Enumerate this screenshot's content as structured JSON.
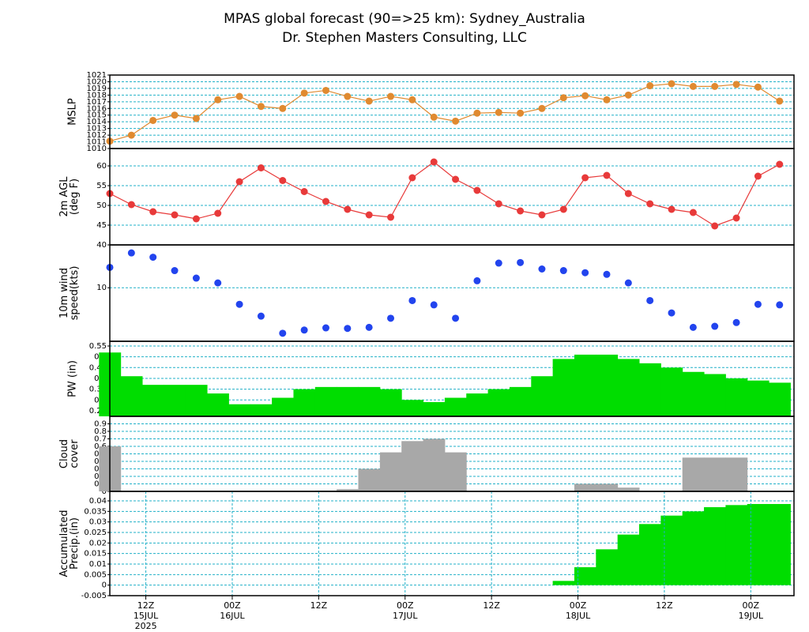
{
  "header": {
    "title": "MPAS global forecast (90=>25 km): Sydney_Australia",
    "subtitle": "Dr. Stephen Masters Consulting, LLC"
  },
  "chart_data": [
    {
      "type": "line",
      "ylabel": [
        "MSLP"
      ],
      "color": "#e08a30",
      "grid": true,
      "x": [
        7,
        10,
        13,
        16,
        19,
        22,
        25,
        28,
        31,
        34,
        37,
        40,
        43,
        46,
        49,
        52,
        55,
        58,
        61,
        64,
        67,
        70,
        73,
        76,
        79,
        82,
        85,
        88,
        91,
        94,
        97,
        100
      ],
      "values": [
        1011.1,
        1012,
        1014.2,
        1015,
        1014.5,
        1017.3,
        1017.8,
        1016.3,
        1016,
        1018.3,
        1018.7,
        1017.8,
        1017.1,
        1017.8,
        1017.3,
        1014.7,
        1014.1,
        1015.3,
        1015.4,
        1015.3,
        1016,
        1017.6,
        1017.9,
        1017.3,
        1018,
        1019.4,
        1019.7,
        1019.3,
        1019.3,
        1019.6,
        1019.2,
        1017.1
      ],
      "xlim": [
        7,
        102
      ],
      "ylim": [
        1010,
        1021
      ],
      "yticks": [
        1010,
        1011,
        1012,
        1013,
        1014,
        1015,
        1016,
        1017,
        1018,
        1019,
        1020,
        1021
      ]
    },
    {
      "type": "line",
      "ylabel": [
        "2m AGL",
        "(deg F)"
      ],
      "color": "#e83a3a",
      "grid": true,
      "x": [
        7,
        10,
        13,
        16,
        19,
        22,
        25,
        28,
        31,
        34,
        37,
        40,
        43,
        46,
        49,
        52,
        55,
        58,
        61,
        64,
        67,
        70,
        73,
        76,
        79,
        82,
        85,
        88,
        91,
        94,
        97,
        100
      ],
      "values": [
        53,
        50.2,
        48.4,
        47.6,
        46.6,
        48,
        56,
        59.5,
        56.3,
        53.5,
        51,
        49,
        47.6,
        47,
        57,
        61,
        56.6,
        53.8,
        50.4,
        48.6,
        47.6,
        49,
        57,
        57.6,
        53,
        50.4,
        49,
        48.2,
        44.8,
        46.8,
        57.4,
        60.4
      ],
      "xlim": [
        7,
        102
      ],
      "ylim": [
        40,
        64.4
      ],
      "yticks": [
        40,
        45,
        50,
        55,
        60
      ]
    },
    {
      "type": "scatter",
      "ylabel": [
        "10m wind",
        "speed(kts)"
      ],
      "color": "#2244ee",
      "grid": true,
      "x": [
        7,
        10,
        13,
        16,
        19,
        22,
        25,
        28,
        31,
        34,
        37,
        40,
        43,
        46,
        49,
        52,
        55,
        58,
        61,
        64,
        67,
        70,
        73,
        76,
        79,
        82,
        85,
        88,
        91,
        94,
        97,
        100
      ],
      "values": [
        13.8,
        16.5,
        15.7,
        13.2,
        11.8,
        10.9,
        6.9,
        4.7,
        1.5,
        2.1,
        2.5,
        2.4,
        2.6,
        4.3,
        7.6,
        6.8,
        4.3,
        11.3,
        14.6,
        14.7,
        13.5,
        13.2,
        12.8,
        12.5,
        10.9,
        7.6,
        5.3,
        2.6,
        2.8,
        3.5,
        6.9,
        6.8
      ],
      "xlim": [
        7,
        102
      ],
      "ylim": [
        0,
        18
      ],
      "yticks": [
        10
      ]
    },
    {
      "type": "bar",
      "ylabel": [
        "PW (in)"
      ],
      "color": "#00dd00",
      "grid": true,
      "x": [
        7,
        10,
        13,
        16,
        19,
        22,
        25,
        28,
        31,
        34,
        37,
        40,
        43,
        46,
        49,
        52,
        55,
        58,
        61,
        64,
        67,
        70,
        73,
        76,
        79,
        82,
        85,
        88,
        91,
        94,
        97,
        100
      ],
      "values": [
        0.52,
        0.41,
        0.37,
        0.37,
        0.37,
        0.33,
        0.28,
        0.28,
        0.31,
        0.35,
        0.36,
        0.36,
        0.36,
        0.35,
        0.3,
        0.29,
        0.31,
        0.33,
        0.35,
        0.36,
        0.41,
        0.49,
        0.51,
        0.51,
        0.49,
        0.47,
        0.45,
        0.43,
        0.42,
        0.4,
        0.39,
        0.38
      ],
      "xlim": [
        7,
        102
      ],
      "ylim": [
        0.224,
        0.572
      ],
      "yticks": [
        0.25,
        0.3,
        0.35,
        0.4,
        0.45,
        0.5,
        0.55
      ]
    },
    {
      "type": "bar",
      "ylabel": [
        "Cloud",
        "cover"
      ],
      "color": "#a8a8a8",
      "grid": true,
      "x": [
        7,
        10,
        13,
        16,
        19,
        22,
        25,
        28,
        31,
        34,
        37,
        40,
        43,
        46,
        49,
        52,
        55,
        58,
        61,
        64,
        67,
        70,
        73,
        76,
        79,
        82,
        85,
        88,
        91,
        94,
        97,
        100
      ],
      "values": [
        0.6,
        0,
        0,
        0,
        0,
        0,
        0,
        0,
        0,
        0,
        0.01,
        0.03,
        0.3,
        0.52,
        0.67,
        0.7,
        0.52,
        0,
        0,
        0,
        0,
        0,
        0.1,
        0.1,
        0.05,
        0,
        0,
        0.45,
        0.45,
        0.45,
        0,
        0
      ],
      "xlim": [
        7,
        102
      ],
      "ylim": [
        0,
        1
      ],
      "yticks": [
        0,
        0.1,
        0.2,
        0.3,
        0.4,
        0.5,
        0.6,
        0.7,
        0.8,
        0.9
      ]
    },
    {
      "type": "bar",
      "ylabel": [
        "Accumulated",
        "Precip.(in)"
      ],
      "color": "#00dd00",
      "grid": true,
      "xgrid": true,
      "x": [
        7,
        10,
        13,
        16,
        19,
        22,
        25,
        28,
        31,
        34,
        37,
        40,
        43,
        46,
        49,
        52,
        55,
        58,
        61,
        64,
        67,
        70,
        73,
        76,
        79,
        82,
        85,
        88,
        91,
        94,
        97,
        100
      ],
      "values": [
        0,
        0,
        0,
        0,
        0,
        0,
        0,
        0,
        0,
        0,
        0,
        0,
        0,
        0,
        0,
        0,
        0,
        0,
        0,
        0,
        0,
        0.002,
        0.0085,
        0.017,
        0.024,
        0.029,
        0.033,
        0.035,
        0.037,
        0.038,
        0.0385,
        0.0385
      ],
      "xlim": [
        7,
        102
      ],
      "ylim": [
        -0.005,
        0.0445
      ],
      "yticks": [
        -0.005,
        0,
        0.005,
        0.01,
        0.015,
        0.02,
        0.025,
        0.03,
        0.035,
        0.04
      ],
      "xticks": [
        {
          "value": 12,
          "label": "12Z"
        },
        {
          "value": 24,
          "label": "00Z"
        },
        {
          "value": 36,
          "label": "12Z"
        },
        {
          "value": 48,
          "label": "00Z"
        },
        {
          "value": 60,
          "label": "12Z"
        },
        {
          "value": 72,
          "label": "00Z"
        },
        {
          "value": 84,
          "label": "12Z"
        },
        {
          "value": 96,
          "label": "00Z"
        }
      ],
      "xtick_dates": [
        {
          "value": 12,
          "label": "15JUL"
        },
        {
          "value": 24,
          "label": "16JUL"
        },
        {
          "value": 48,
          "label": "17JUL"
        },
        {
          "value": 72,
          "label": "18JUL"
        },
        {
          "value": 96,
          "label": "19JUL"
        }
      ],
      "year": {
        "value": 12,
        "label": "2025"
      }
    }
  ]
}
